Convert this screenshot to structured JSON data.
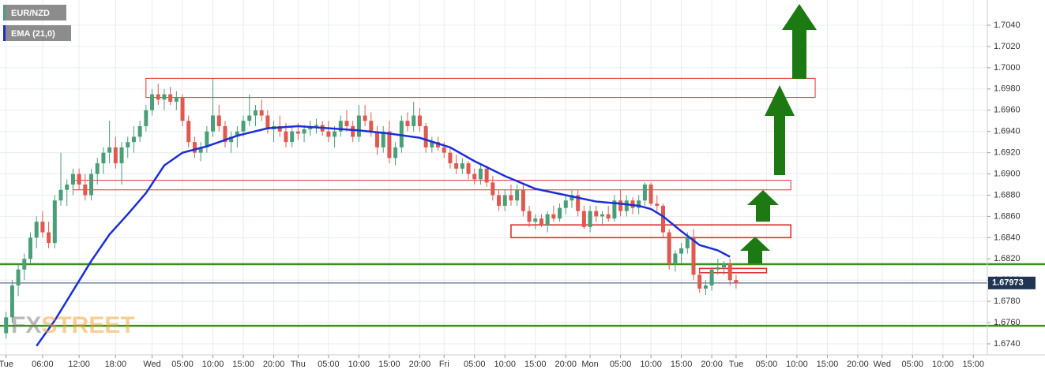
{
  "chart_data": {
    "type": "candlestick",
    "instrument": {
      "name": "EUR/NZD",
      "up_color": "#4a9e78",
      "down_color": "#e0584f",
      "candles": [
        [
          1.675,
          1.677,
          1.6745,
          1.6765
        ],
        [
          1.6765,
          1.68,
          1.676,
          1.6795
        ],
        [
          1.6795,
          1.6815,
          1.6785,
          1.681
        ],
        [
          1.681,
          1.6825,
          1.68,
          1.682
        ],
        [
          1.682,
          1.6845,
          1.6815,
          1.684
        ],
        [
          1.684,
          1.686,
          1.683,
          1.6855
        ],
        [
          1.6855,
          1.6865,
          1.684,
          1.6845
        ],
        [
          1.6845,
          1.6855,
          1.683,
          1.6835
        ],
        [
          1.6835,
          1.688,
          1.683,
          1.6875
        ],
        [
          1.6875,
          1.692,
          1.687,
          1.6885
        ],
        [
          1.6885,
          1.6895,
          1.687,
          1.689
        ],
        [
          1.689,
          1.6905,
          1.688,
          1.69
        ],
        [
          1.69,
          1.6905,
          1.6885,
          1.689
        ],
        [
          1.689,
          1.69,
          1.6875,
          1.688
        ],
        [
          1.688,
          1.6905,
          1.6875,
          1.69
        ],
        [
          1.69,
          1.6915,
          1.689,
          1.691
        ],
        [
          1.691,
          1.6925,
          1.69,
          1.692
        ],
        [
          1.692,
          1.695,
          1.691,
          1.6925
        ],
        [
          1.6925,
          1.6935,
          1.6905,
          1.691
        ],
        [
          1.691,
          1.693,
          1.689,
          1.6925
        ],
        [
          1.6925,
          1.6935,
          1.6915,
          1.693
        ],
        [
          1.693,
          1.6945,
          1.692,
          1.6935
        ],
        [
          1.6935,
          1.695,
          1.693,
          1.6945
        ],
        [
          1.6945,
          1.6965,
          1.694,
          1.696
        ],
        [
          1.696,
          1.698,
          1.6955,
          1.6975
        ],
        [
          1.6975,
          1.6985,
          1.6965,
          1.697
        ],
        [
          1.697,
          1.698,
          1.696,
          1.6975
        ],
        [
          1.6975,
          1.6982,
          1.6965,
          1.6968
        ],
        [
          1.6968,
          1.6978,
          1.696,
          1.6972
        ],
        [
          1.6972,
          1.6975,
          1.6945,
          1.695
        ],
        [
          1.695,
          1.6955,
          1.6925,
          1.693
        ],
        [
          1.693,
          1.6935,
          1.6915,
          1.692
        ],
        [
          1.692,
          1.693,
          1.6912,
          1.6925
        ],
        [
          1.6925,
          1.6945,
          1.692,
          1.694
        ],
        [
          1.694,
          1.699,
          1.6935,
          1.6955
        ],
        [
          1.6955,
          1.6965,
          1.694,
          1.6945
        ],
        [
          1.6945,
          1.695,
          1.6925,
          1.693
        ],
        [
          1.693,
          1.694,
          1.692,
          1.6935
        ],
        [
          1.6935,
          1.6945,
          1.6925,
          1.694
        ],
        [
          1.694,
          1.6955,
          1.6935,
          1.695
        ],
        [
          1.695,
          1.6975,
          1.6945,
          1.6955
        ],
        [
          1.6955,
          1.6965,
          1.6945,
          1.696
        ],
        [
          1.696,
          1.697,
          1.695,
          1.6955
        ],
        [
          1.6955,
          1.696,
          1.6938,
          1.6942
        ],
        [
          1.6942,
          1.695,
          1.693,
          1.6945
        ],
        [
          1.6945,
          1.6955,
          1.6935,
          1.694
        ],
        [
          1.694,
          1.6948,
          1.6925,
          1.693
        ],
        [
          1.693,
          1.6945,
          1.6925,
          1.694
        ],
        [
          1.694,
          1.6948,
          1.6932,
          1.6938
        ],
        [
          1.6938,
          1.6946,
          1.693,
          1.6942
        ],
        [
          1.6942,
          1.695,
          1.6936,
          1.6944
        ],
        [
          1.6944,
          1.6952,
          1.6938,
          1.6946
        ],
        [
          1.6946,
          1.695,
          1.6936,
          1.694
        ],
        [
          1.694,
          1.695,
          1.693,
          1.6935
        ],
        [
          1.6935,
          1.6945,
          1.6925,
          1.694
        ],
        [
          1.694,
          1.6955,
          1.6935,
          1.695
        ],
        [
          1.695,
          1.696,
          1.694,
          1.6945
        ],
        [
          1.6945,
          1.695,
          1.693,
          1.6935
        ],
        [
          1.6935,
          1.6965,
          1.693,
          1.6955
        ],
        [
          1.6955,
          1.6965,
          1.6945,
          1.695
        ],
        [
          1.695,
          1.6958,
          1.6935,
          1.694
        ],
        [
          1.694,
          1.6945,
          1.6918,
          1.6925
        ],
        [
          1.6925,
          1.6945,
          1.692,
          1.694
        ],
        [
          1.694,
          1.695,
          1.691,
          1.6915
        ],
        [
          1.6915,
          1.693,
          1.6908,
          1.6925
        ],
        [
          1.6925,
          1.6955,
          1.692,
          1.695
        ],
        [
          1.695,
          1.6958,
          1.694,
          1.6945
        ],
        [
          1.6945,
          1.6968,
          1.694,
          1.6955
        ],
        [
          1.6955,
          1.6962,
          1.694,
          1.6945
        ],
        [
          1.6945,
          1.6948,
          1.692,
          1.6925
        ],
        [
          1.6925,
          1.6935,
          1.692,
          1.693
        ],
        [
          1.693,
          1.6935,
          1.6922,
          1.6925
        ],
        [
          1.6925,
          1.693,
          1.6915,
          1.692
        ],
        [
          1.692,
          1.6925,
          1.6905,
          1.691
        ],
        [
          1.691,
          1.6918,
          1.69,
          1.6905
        ],
        [
          1.6905,
          1.6915,
          1.69,
          1.691
        ],
        [
          1.691,
          1.6912,
          1.6895,
          1.69
        ],
        [
          1.69,
          1.6905,
          1.689,
          1.6895
        ],
        [
          1.6895,
          1.691,
          1.689,
          1.6905
        ],
        [
          1.6905,
          1.6908,
          1.6888,
          1.6892
        ],
        [
          1.6892,
          1.6898,
          1.6875,
          1.688
        ],
        [
          1.688,
          1.6885,
          1.6865,
          1.687
        ],
        [
          1.687,
          1.6885,
          1.6865,
          1.688
        ],
        [
          1.688,
          1.689,
          1.687,
          1.6875
        ],
        [
          1.6875,
          1.689,
          1.687,
          1.6885
        ],
        [
          1.6885,
          1.689,
          1.686,
          1.6865
        ],
        [
          1.6865,
          1.687,
          1.685,
          1.6855
        ],
        [
          1.6855,
          1.6862,
          1.6848,
          1.6858
        ],
        [
          1.6858,
          1.6862,
          1.685,
          1.6852
        ],
        [
          1.6852,
          1.6865,
          1.6845,
          1.6862
        ],
        [
          1.6862,
          1.687,
          1.6855,
          1.6858
        ],
        [
          1.6858,
          1.6872,
          1.6855,
          1.6868
        ],
        [
          1.6868,
          1.688,
          1.6862,
          1.6875
        ],
        [
          1.6875,
          1.6885,
          1.6868,
          1.688
        ],
        [
          1.688,
          1.6885,
          1.686,
          1.6865
        ],
        [
          1.6865,
          1.687,
          1.6848,
          1.685
        ],
        [
          1.685,
          1.687,
          1.6845,
          1.6865
        ],
        [
          1.6865,
          1.687,
          1.6855,
          1.686
        ],
        [
          1.686,
          1.6865,
          1.6852,
          1.6862
        ],
        [
          1.6862,
          1.687,
          1.6855,
          1.6858
        ],
        [
          1.6858,
          1.688,
          1.6855,
          1.6875
        ],
        [
          1.6875,
          1.6885,
          1.686,
          1.6865
        ],
        [
          1.6865,
          1.688,
          1.686,
          1.6875
        ],
        [
          1.6875,
          1.6878,
          1.6862,
          1.6868
        ],
        [
          1.6868,
          1.688,
          1.6862,
          1.6875
        ],
        [
          1.6875,
          1.6892,
          1.687,
          1.689
        ],
        [
          1.689,
          1.6892,
          1.687,
          1.6872
        ],
        [
          1.6872,
          1.688,
          1.6865,
          1.687
        ],
        [
          1.687,
          1.6872,
          1.684,
          1.6845
        ],
        [
          1.6845,
          1.6848,
          1.681,
          1.6815
        ],
        [
          1.6815,
          1.6828,
          1.6808,
          1.6825
        ],
        [
          1.6825,
          1.6835,
          1.6815,
          1.683
        ],
        [
          1.683,
          1.6845,
          1.6825,
          1.684
        ],
        [
          1.684,
          1.6848,
          1.68,
          1.6805
        ],
        [
          1.6805,
          1.681,
          1.6788,
          1.6792
        ],
        [
          1.6792,
          1.68,
          1.6786,
          1.6795
        ],
        [
          1.6795,
          1.6812,
          1.679,
          1.681
        ],
        [
          1.681,
          1.682,
          1.6805,
          1.6812
        ],
        [
          1.6812,
          1.6818,
          1.6805,
          1.6815
        ],
        [
          1.6815,
          1.682,
          1.6795,
          1.68
        ],
        [
          1.68,
          1.6805,
          1.6792,
          1.6797
        ]
      ]
    },
    "ema": {
      "name": "EMA (21,0)",
      "color": "#1a2fd6",
      "x": [
        5,
        8,
        11,
        14,
        17,
        20,
        23,
        26,
        29,
        33,
        38,
        43,
        48,
        53,
        58,
        63,
        68,
        73,
        77,
        82,
        87,
        92,
        97,
        101,
        104,
        106,
        108,
        111,
        114,
        117,
        119
      ],
      "values": [
        1.6738,
        1.6762,
        1.679,
        1.6818,
        1.6843,
        1.6862,
        1.6882,
        1.6908,
        1.692,
        1.6926,
        1.6936,
        1.6943,
        1.6945,
        1.6943,
        1.6941,
        1.6938,
        1.6934,
        1.6925,
        1.6912,
        1.6898,
        1.6886,
        1.688,
        1.6874,
        1.6872,
        1.687,
        1.6867,
        1.686,
        1.6846,
        1.6833,
        1.6828,
        1.6822
      ]
    },
    "zones": [
      {
        "x": [
          23,
          133
        ],
        "y": [
          1.6972,
          1.699
        ]
      },
      {
        "x": [
          11,
          129
        ],
        "y": [
          1.6885,
          1.6894
        ]
      },
      {
        "x": [
          83,
          129
        ],
        "y": [
          1.684,
          1.6852
        ]
      },
      {
        "x": [
          114,
          125
        ],
        "y": [
          1.6807,
          1.6811
        ]
      }
    ],
    "zone_color": "#e03030",
    "levels": [
      1.6815,
      1.6757
    ],
    "level_color": "#3d8f1a",
    "current_price": 1.67973,
    "watermark": [
      "FX",
      "STREET"
    ],
    "xlim": [
      -1,
      161.3
    ],
    "xticks": [
      {
        "value": 0,
        "label": "Tue"
      },
      {
        "value": 6,
        "label": "06:00"
      },
      {
        "value": 12,
        "label": "12:00"
      },
      {
        "value": 18,
        "label": "18:00"
      },
      {
        "value": 24,
        "label": "Wed"
      },
      {
        "value": 29,
        "label": "05:00"
      },
      {
        "value": 34,
        "label": "10:00"
      },
      {
        "value": 39,
        "label": "15:00"
      },
      {
        "value": 44,
        "label": "20:00"
      },
      {
        "value": 48,
        "label": "Thu"
      },
      {
        "value": 53,
        "label": "05:00"
      },
      {
        "value": 58,
        "label": "10:00"
      },
      {
        "value": 63,
        "label": "15:00"
      },
      {
        "value": 68,
        "label": "20:00"
      },
      {
        "value": 72,
        "label": "Fri"
      },
      {
        "value": 77,
        "label": "05:00"
      },
      {
        "value": 82,
        "label": "10:00"
      },
      {
        "value": 87,
        "label": "15:00"
      },
      {
        "value": 92,
        "label": "20:00"
      },
      {
        "value": 96,
        "label": "Mon"
      },
      {
        "value": 101,
        "label": "05:00"
      },
      {
        "value": 106,
        "label": "10:00"
      },
      {
        "value": 111,
        "label": "15:00"
      },
      {
        "value": 116,
        "label": "20:00"
      },
      {
        "value": 120,
        "label": "Tue"
      },
      {
        "value": 125,
        "label": "05:00"
      },
      {
        "value": 130,
        "label": "10:00"
      },
      {
        "value": 135,
        "label": "15:00"
      },
      {
        "value": 140,
        "label": "20:00"
      },
      {
        "value": 144,
        "label": "Wed"
      },
      {
        "value": 149,
        "label": "05:00"
      },
      {
        "value": 154,
        "label": "10:00"
      },
      {
        "value": 159,
        "label": "15:00"
      }
    ],
    "ylim": [
      1.67296,
      1.70638
    ],
    "yticks": [
      {
        "value": 1.674,
        "label": "1.6740"
      },
      {
        "value": 1.676,
        "label": "1.6760"
      },
      {
        "value": 1.678,
        "label": "1.6780"
      },
      {
        "value": 1.68,
        "label": "1.6800"
      },
      {
        "value": 1.682,
        "label": "1.6820"
      },
      {
        "value": 1.684,
        "label": "1.6840"
      },
      {
        "value": 1.686,
        "label": "1.6860"
      },
      {
        "value": 1.688,
        "label": "1.6880"
      },
      {
        "value": 1.69,
        "label": "1.6900"
      },
      {
        "value": 1.692,
        "label": "1.6920"
      },
      {
        "value": 1.694,
        "label": "1.6940"
      },
      {
        "value": 1.696,
        "label": "1.6960"
      },
      {
        "value": 1.698,
        "label": "1.6980"
      },
      {
        "value": 1.7,
        "label": "1.7000"
      },
      {
        "value": 1.702,
        "label": "1.7020"
      },
      {
        "value": 1.704,
        "label": "1.7040"
      }
    ],
    "grid": true
  }
}
